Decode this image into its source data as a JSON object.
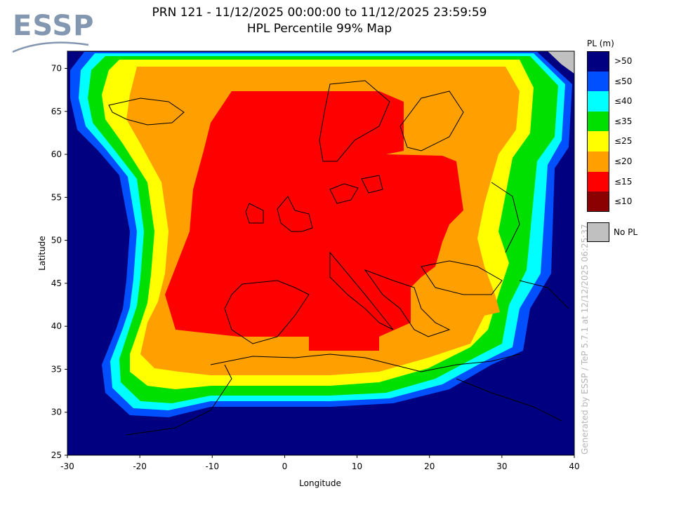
{
  "header": {
    "logo_text": "ESSP",
    "title_line1": "PRN 121 - 11/12/2025 00:00:00 to 11/12/2025 23:59:59",
    "title_line2": "HPL Percentile 99% Map"
  },
  "credit": "Generated by ESSP / TeP 5.7.1 at 12/12/2025 06:25:37",
  "chart_data": {
    "type": "heatmap",
    "title": "PRN 121 - 11/12/2025 00:00:00 to 11/12/2025 23:59:59",
    "subtitle": "HPL Percentile 99% Map",
    "xlabel": "Longitude",
    "ylabel": "Latitude",
    "xlim": [
      -30,
      40
    ],
    "ylim": [
      25,
      72
    ],
    "xticks": [
      "-30",
      "-20",
      "-10",
      "0",
      "10",
      "20",
      "30",
      "40"
    ],
    "yticks": [
      "25",
      "30",
      "35",
      "40",
      "45",
      "50",
      "55",
      "60",
      "65",
      "70"
    ],
    "legend": {
      "title": "PL (m)",
      "placement": "right",
      "entries": [
        {
          "label": ">50",
          "color": "#000080"
        },
        {
          "label": "≤50",
          "color": "#0050ff"
        },
        {
          "label": "≤40",
          "color": "#00ffff"
        },
        {
          "label": "≤35",
          "color": "#00e000"
        },
        {
          "label": "≤25",
          "color": "#ffff00"
        },
        {
          "label": "≤20",
          "color": "#ffa000"
        },
        {
          "label": "≤15",
          "color": "#ff0000"
        },
        {
          "label": "≤10",
          "color": "#8b0000"
        }
      ],
      "no_pl": {
        "label": "No PL",
        "color": "#c0c0c0"
      }
    },
    "regions": {
      "outer_above_50": "#000080",
      "band_50": "#0050ff",
      "band_40": "#00ffff",
      "band_35": "#00e000",
      "band_25": "#ffff00",
      "band_20": "#ffa000",
      "core_15": "#ff0000",
      "no_pl_corner": "#c0c0c0"
    }
  }
}
